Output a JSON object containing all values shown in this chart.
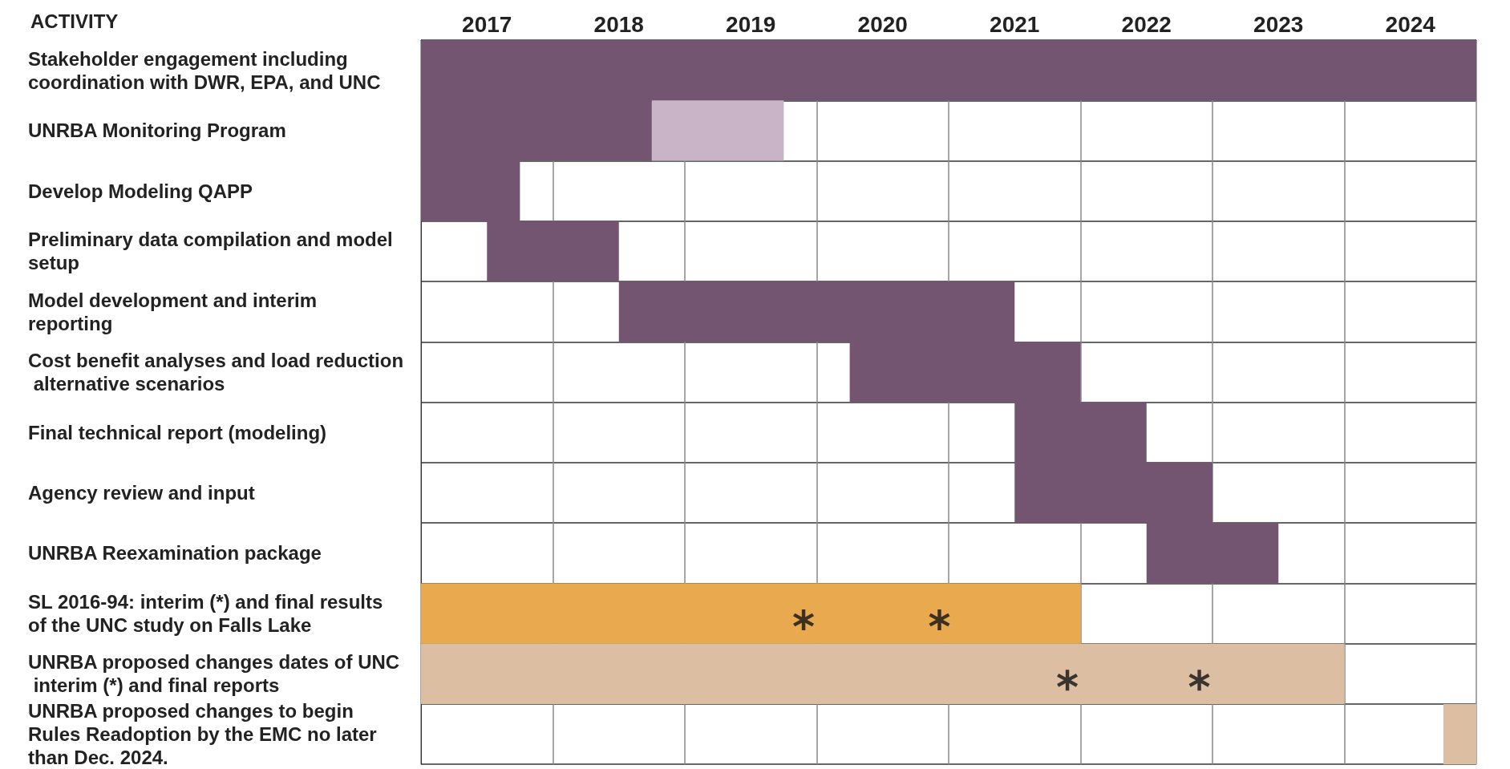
{
  "chart_data": {
    "type": "bar",
    "orientation": "horizontal",
    "ylabel": "ACTIVITY",
    "categories": [
      "Stakeholder engagement including coordination with DWR, EPA, and UNC",
      "UNRBA Monitoring Program",
      "Develop Modeling QAPP",
      "Preliminary data compilation and model setup",
      "Model development and interim reporting",
      "Cost benefit analyses and load reduction alternative scenarios",
      "Final technical report (modeling)",
      "Agency review and input",
      "UNRBA Reexamination package",
      "SL 2016-94: interim (*) and final results of the UNC study on Falls Lake",
      "UNRBA proposed changes dates of UNC interim (*) and final reports",
      "UNRBA proposed changes to begin Rules Readoption by the EMC no later than Dec. 2024."
    ],
    "series": [
      {
        "color": "#735572",
        "base": [
          2017,
          2017,
          2017,
          2017.5,
          2018.5,
          2020.25,
          2021.5,
          2021.5,
          2022.5,
          null,
          null,
          null
        ],
        "values": [
          8,
          1.75,
          0.75,
          1,
          3,
          1.75,
          1,
          1.5,
          1,
          null,
          null,
          null
        ]
      },
      {
        "color": "#c9b4c7",
        "base": [
          null,
          2018.75,
          null,
          null,
          null,
          null,
          null,
          null,
          null,
          null,
          null,
          null
        ],
        "values": [
          null,
          1,
          null,
          null,
          null,
          null,
          null,
          null,
          null,
          null,
          null,
          null
        ]
      },
      {
        "color": "#e8a94f",
        "base": [
          null,
          null,
          null,
          null,
          null,
          null,
          null,
          null,
          null,
          2017,
          null,
          null
        ],
        "values": [
          null,
          null,
          null,
          null,
          null,
          null,
          null,
          null,
          null,
          5,
          null,
          null
        ]
      },
      {
        "color": "#dcbfa2",
        "base": [
          null,
          null,
          null,
          null,
          null,
          null,
          null,
          null,
          null,
          null,
          2017,
          2024.75
        ],
        "values": [
          null,
          null,
          null,
          null,
          null,
          null,
          null,
          null,
          null,
          null,
          7,
          0.25
        ]
      },
      {
        "type": "scatter",
        "marker": "star",
        "color": "#111111",
        "values": [
          null,
          null,
          null,
          null,
          null,
          null,
          null,
          null,
          null,
          2019.9,
          2021.9,
          null
        ]
      },
      {
        "type": "scatter",
        "marker": "star",
        "color": "#111111",
        "values": [
          null,
          null,
          null,
          null,
          null,
          null,
          null,
          null,
          null,
          2020.93,
          2022.9,
          null
        ]
      }
    ],
    "xlim": [
      2017,
      2025
    ],
    "xticks": [
      {
        "value": 2017,
        "label": null
      },
      {
        "value": 2017.5,
        "label": "2017"
      },
      {
        "value": 2018,
        "label": null
      },
      {
        "value": 2018.5,
        "label": "2018"
      },
      {
        "value": 2019,
        "label": null
      },
      {
        "value": 2019.5,
        "label": "2019"
      },
      {
        "value": 2020,
        "label": null
      },
      {
        "value": 2020.5,
        "label": "2020"
      },
      {
        "value": 2021,
        "label": null
      },
      {
        "value": 2021.5,
        "label": "2021"
      },
      {
        "value": 2022,
        "label": null
      },
      {
        "value": 2022.5,
        "label": "2022"
      },
      {
        "value": 2023,
        "label": null
      },
      {
        "value": 2023.5,
        "label": "2023"
      },
      {
        "value": 2024,
        "label": null
      },
      {
        "value": 2024.5,
        "label": "2024"
      },
      {
        "value": 2025,
        "label": null
      }
    ],
    "grid": true
  }
}
